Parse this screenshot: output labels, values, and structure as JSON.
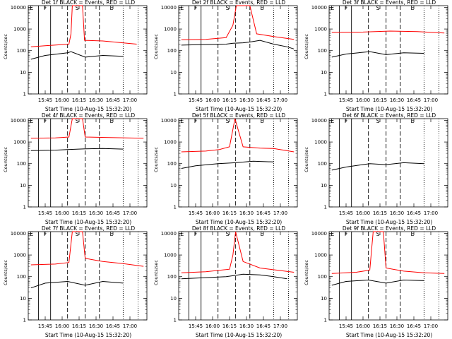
{
  "chart_data": [
    {
      "type": "line",
      "title": "Det 1f BLACK = Events, RED = LLD",
      "ylabel": "Counts/sec",
      "xlabel": "Start Time (10-Aug-15 15:32:20)",
      "x_ticks": [
        "15:45",
        "16:00",
        "16:15",
        "16:30",
        "16:45",
        "17:00"
      ],
      "y_ticks": [
        "1",
        "10",
        "100",
        "1000",
        "10000"
      ],
      "ylim": [
        1,
        12000
      ],
      "yscale": "log",
      "markers": [
        "E",
        "F",
        "S",
        "E"
      ],
      "series": [
        {
          "name": "RED",
          "color": "#ff0000",
          "values": [
            [
              15.54,
              150
            ],
            [
              15.75,
              170
            ],
            [
              16.1,
              200
            ],
            [
              16.13,
              600
            ],
            [
              16.15,
              12000
            ],
            [
              16.3,
              12000
            ],
            [
              16.33,
              300
            ],
            [
              16.6,
              280
            ],
            [
              17.1,
              200
            ]
          ]
        },
        {
          "name": "BLACK",
          "color": "#000000",
          "values": [
            [
              15.54,
              40
            ],
            [
              15.75,
              60
            ],
            [
              16.08,
              80
            ],
            [
              16.13,
              90
            ],
            [
              16.34,
              50
            ],
            [
              16.6,
              60
            ],
            [
              16.9,
              55
            ]
          ]
        }
      ]
    },
    {
      "type": "line",
      "title": "Det 2f BLACK = Events, RED = LLD",
      "ylabel": "Counts/sec",
      "xlabel": "Start Time (10-Aug-15 15:32:20)",
      "x_ticks": [
        "15:45",
        "16:00",
        "16:15",
        "16:30",
        "16:45",
        "17:00"
      ],
      "y_ticks": [
        "1",
        "10",
        "100",
        "1000",
        "10000"
      ],
      "ylim": [
        1,
        12000
      ],
      "yscale": "log",
      "markers": [
        "E",
        "F",
        "S",
        "E"
      ],
      "series": [
        {
          "name": "RED",
          "color": "#ff0000",
          "values": [
            [
              15.54,
              320
            ],
            [
              15.9,
              330
            ],
            [
              16.2,
              400
            ],
            [
              16.3,
              1500
            ],
            [
              16.35,
              12000
            ],
            [
              16.55,
              12000
            ],
            [
              16.65,
              600
            ],
            [
              16.9,
              450
            ],
            [
              17.2,
              330
            ]
          ]
        },
        {
          "name": "BLACK",
          "color": "#000000",
          "values": [
            [
              15.54,
              180
            ],
            [
              15.8,
              190
            ],
            [
              16.2,
              200
            ],
            [
              16.3,
              220
            ],
            [
              16.45,
              230
            ],
            [
              16.55,
              250
            ],
            [
              16.7,
              300
            ],
            [
              16.9,
              200
            ],
            [
              17.1,
              150
            ],
            [
              17.2,
              120
            ]
          ]
        }
      ]
    },
    {
      "type": "line",
      "title": "Det 3f BLACK = Events, RED = LLD",
      "ylabel": "Counts/sec",
      "xlabel": "Start Time (10-Aug-15 15:32:20)",
      "x_ticks": [
        "15:45",
        "16:00",
        "16:15",
        "16:30",
        "16:45",
        "17:00"
      ],
      "y_ticks": [
        "1",
        "10",
        "100",
        "1000",
        "10000"
      ],
      "ylim": [
        1,
        12000
      ],
      "yscale": "log",
      "markers": [
        "E",
        "F",
        "S",
        "E"
      ],
      "series": [
        {
          "name": "RED",
          "color": "#ff0000",
          "values": [
            [
              15.54,
              700
            ],
            [
              16.0,
              720
            ],
            [
              16.4,
              800
            ],
            [
              16.8,
              760
            ],
            [
              17.2,
              650
            ]
          ]
        },
        {
          "name": "BLACK",
          "color": "#000000",
          "values": [
            [
              15.54,
              50
            ],
            [
              15.75,
              70
            ],
            [
              16.1,
              90
            ],
            [
              16.34,
              65
            ],
            [
              16.6,
              80
            ],
            [
              16.9,
              75
            ]
          ]
        }
      ]
    },
    {
      "type": "line",
      "title": "Det 4f BLACK = Events, RED = LLD",
      "ylabel": "Counts/sec",
      "xlabel": "Start Time (10-Aug-15 15:32:20)",
      "x_ticks": [
        "15:45",
        "16:00",
        "16:15",
        "16:30",
        "16:45",
        "17:00"
      ],
      "y_ticks": [
        "1",
        "10",
        "100",
        "1000",
        "10000"
      ],
      "ylim": [
        1,
        12000
      ],
      "yscale": "log",
      "markers": [
        "E",
        "F",
        "S",
        "E"
      ],
      "series": [
        {
          "name": "RED",
          "color": "#ff0000",
          "values": [
            [
              15.54,
              1500
            ],
            [
              15.9,
              1550
            ],
            [
              16.1,
              1700
            ],
            [
              16.15,
              12000
            ],
            [
              16.3,
              12000
            ],
            [
              16.34,
              1700
            ],
            [
              16.7,
              1600
            ],
            [
              17.2,
              1500
            ]
          ]
        },
        {
          "name": "BLACK",
          "color": "#000000",
          "values": [
            [
              15.54,
              400
            ],
            [
              15.9,
              420
            ],
            [
              16.08,
              450
            ],
            [
              16.34,
              480
            ],
            [
              16.6,
              500
            ],
            [
              16.9,
              470
            ]
          ]
        }
      ]
    },
    {
      "type": "line",
      "title": "Det 5f BLACK = Events, RED = LLD",
      "ylabel": "Counts/sec",
      "xlabel": "Start Time (10-Aug-15 15:32:20)",
      "x_ticks": [
        "15:45",
        "16:00",
        "16:15",
        "16:30",
        "16:45",
        "17:00"
      ],
      "y_ticks": [
        "1",
        "10",
        "100",
        "1000",
        "10000"
      ],
      "ylim": [
        1,
        12000
      ],
      "yscale": "log",
      "markers": [
        "E",
        "F",
        "S",
        "E"
      ],
      "series": [
        {
          "name": "RED",
          "color": "#ff0000",
          "values": [
            [
              15.54,
              350
            ],
            [
              15.9,
              380
            ],
            [
              16.1,
              450
            ],
            [
              16.25,
              600
            ],
            [
              16.33,
              12000
            ],
            [
              16.45,
              600
            ],
            [
              16.7,
              520
            ],
            [
              16.9,
              500
            ],
            [
              17.2,
              350
            ]
          ]
        },
        {
          "name": "BLACK",
          "color": "#000000",
          "values": [
            [
              15.54,
              60
            ],
            [
              15.75,
              80
            ],
            [
              16.08,
              100
            ],
            [
              16.34,
              110
            ],
            [
              16.6,
              130
            ],
            [
              16.9,
              120
            ]
          ]
        }
      ]
    },
    {
      "type": "line",
      "title": "Det 6f BLACK = Events, RED = LLD",
      "ylabel": "Counts/sec",
      "xlabel": "Start Time (10-Aug-15 15:32:20)",
      "x_ticks": [
        "15:45",
        "16:00",
        "16:15",
        "16:30",
        "16:45",
        "17:00"
      ],
      "y_ticks": [
        "1",
        "10",
        "100",
        "1000",
        "10000"
      ],
      "ylim": [
        1,
        12000
      ],
      "yscale": "log",
      "markers": [
        "E",
        "F",
        "S",
        "E"
      ],
      "series": [
        {
          "name": "BLACK",
          "color": "#000000",
          "values": [
            [
              15.54,
              50
            ],
            [
              15.75,
              70
            ],
            [
              16.1,
              100
            ],
            [
              16.34,
              90
            ],
            [
              16.6,
              110
            ],
            [
              16.9,
              100
            ]
          ]
        }
      ]
    },
    {
      "type": "line",
      "title": "Det 7f BLACK = Events, RED = LLD",
      "ylabel": "Counts/sec",
      "xlabel": "Start Time (10-Aug-15 15:32:20)",
      "x_ticks": [
        "15:45",
        "16:00",
        "16:15",
        "16:30",
        "16:45",
        "17:00"
      ],
      "y_ticks": [
        "1",
        "10",
        "100",
        "1000",
        "10000"
      ],
      "ylim": [
        1,
        12000
      ],
      "yscale": "log",
      "markers": [
        "E",
        "F",
        "S",
        "E"
      ],
      "series": [
        {
          "name": "RED",
          "color": "#ff0000",
          "values": [
            [
              15.54,
              350
            ],
            [
              15.9,
              380
            ],
            [
              16.1,
              450
            ],
            [
              16.15,
              12000
            ],
            [
              16.3,
              12000
            ],
            [
              16.34,
              700
            ],
            [
              16.6,
              500
            ],
            [
              16.9,
              400
            ],
            [
              17.2,
              300
            ]
          ]
        },
        {
          "name": "BLACK",
          "color": "#000000",
          "values": [
            [
              15.54,
              30
            ],
            [
              15.75,
              50
            ],
            [
              16.08,
              60
            ],
            [
              16.34,
              40
            ],
            [
              16.6,
              60
            ],
            [
              16.9,
              50
            ]
          ]
        }
      ]
    },
    {
      "type": "line",
      "title": "Det 8f BLACK = Events, RED = LLD",
      "ylabel": "Counts/sec",
      "xlabel": "Start Time (10-Aug-15 15:32:20)",
      "x_ticks": [
        "15:45",
        "16:00",
        "16:15",
        "16:30",
        "16:45",
        "17:00"
      ],
      "y_ticks": [
        "1",
        "10",
        "100",
        "1000",
        "10000"
      ],
      "ylim": [
        1,
        12000
      ],
      "yscale": "log",
      "markers": [
        "E",
        "F",
        "S",
        "E"
      ],
      "series": [
        {
          "name": "RED",
          "color": "#ff0000",
          "values": [
            [
              15.54,
              150
            ],
            [
              15.9,
              170
            ],
            [
              16.25,
              220
            ],
            [
              16.3,
              1000
            ],
            [
              16.34,
              12000
            ],
            [
              16.45,
              500
            ],
            [
              16.7,
              250
            ],
            [
              17.2,
              160
            ]
          ]
        },
        {
          "name": "BLACK",
          "color": "#000000",
          "values": [
            [
              15.54,
              80
            ],
            [
              15.9,
              90
            ],
            [
              16.2,
              100
            ],
            [
              16.3,
              110
            ],
            [
              16.45,
              130
            ],
            [
              16.7,
              120
            ],
            [
              16.9,
              100
            ],
            [
              17.1,
              80
            ]
          ]
        }
      ]
    },
    {
      "type": "line",
      "title": "Det 9f BLACK = Events, RED = LLD",
      "ylabel": "Counts/sec",
      "xlabel": "Start Time (10-Aug-15 15:32:20)",
      "x_ticks": [
        "15:45",
        "16:00",
        "16:15",
        "16:30",
        "16:45",
        "17:00"
      ],
      "y_ticks": [
        "1",
        "10",
        "100",
        "1000",
        "10000"
      ],
      "ylim": [
        1,
        12000
      ],
      "yscale": "log",
      "markers": [
        "E",
        "F",
        "S",
        "E"
      ],
      "series": [
        {
          "name": "RED",
          "color": "#ff0000",
          "values": [
            [
              15.54,
              140
            ],
            [
              15.9,
              160
            ],
            [
              16.1,
              200
            ],
            [
              16.15,
              12000
            ],
            [
              16.3,
              12000
            ],
            [
              16.34,
              250
            ],
            [
              16.6,
              180
            ],
            [
              16.9,
              150
            ],
            [
              17.2,
              140
            ]
          ]
        },
        {
          "name": "BLACK",
          "color": "#000000",
          "values": [
            [
              15.54,
              40
            ],
            [
              15.75,
              60
            ],
            [
              16.08,
              70
            ],
            [
              16.34,
              50
            ],
            [
              16.6,
              70
            ],
            [
              16.9,
              65
            ]
          ]
        }
      ]
    }
  ]
}
